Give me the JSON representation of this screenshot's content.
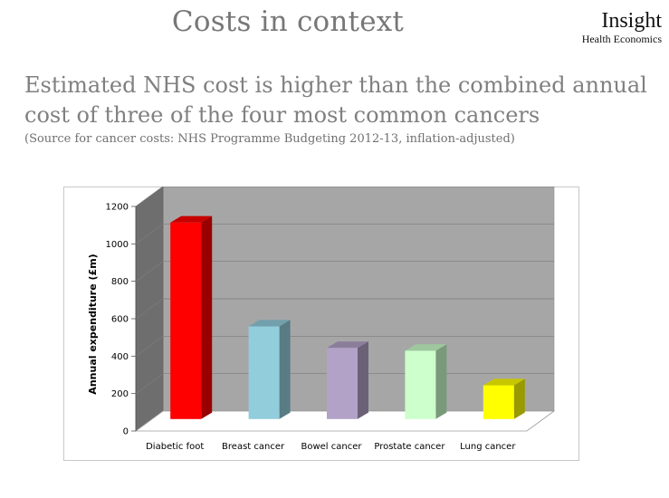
{
  "slide": {
    "title": "Costs in context",
    "logo_main": "Insight",
    "logo_sub": "Health Economics",
    "headline": "Estimated NHS cost is higher than the combined annual cost of three of the four most common cancers",
    "source": "(Source for cancer costs: NHS Programme Budgeting 2012-13, inflation-adjusted)"
  },
  "chart_data": {
    "type": "bar",
    "style": "3d-column",
    "categories": [
      "Diabetic foot",
      "Breast cancer",
      "Bowel cancer",
      "Prostate cancer",
      "Lung cancer"
    ],
    "values": [
      1050,
      495,
      380,
      365,
      180
    ],
    "colors": [
      "#ff0000",
      "#92cddc",
      "#b2a2c7",
      "#ccffcc",
      "#ffff00"
    ],
    "title": "",
    "xlabel": "",
    "ylabel": "Annual expenditure (£m)",
    "ylim": [
      0,
      1200
    ],
    "yticks": [
      "0",
      "200",
      "400",
      "600",
      "800",
      "1000",
      "1200"
    ],
    "grid": true,
    "legend": "none",
    "wall_color": "#a6a6a6"
  }
}
